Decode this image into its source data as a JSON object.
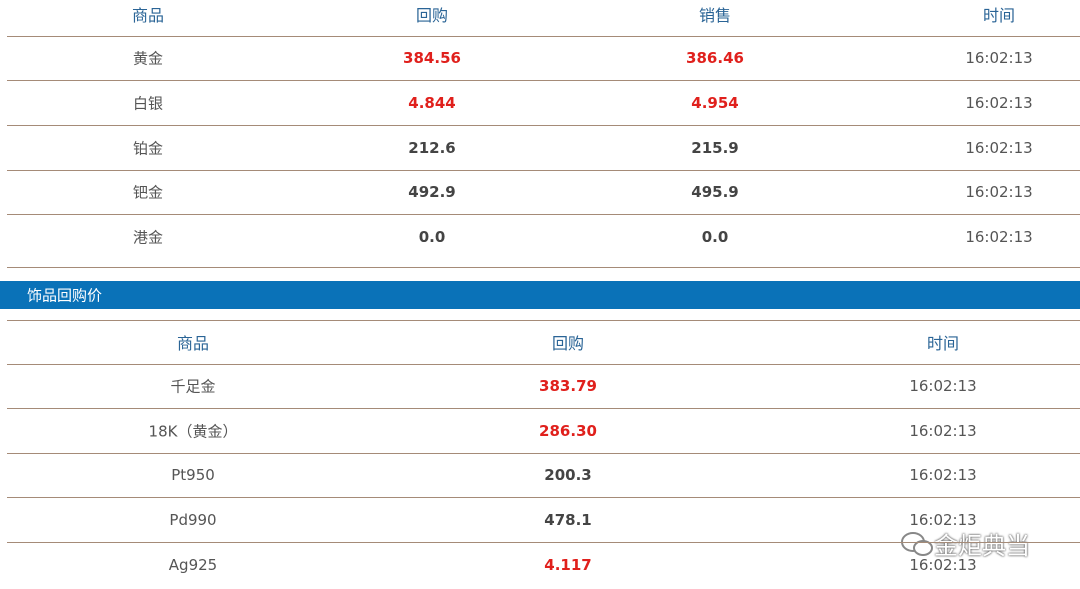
{
  "table1": {
    "header": [
      "商品",
      "回购",
      "销售",
      "时间"
    ],
    "rows": [
      [
        "黄金",
        "384.56",
        "386.46",
        "16:02:13"
      ],
      [
        "白银",
        "4.844",
        "4.954",
        "16:02:13"
      ],
      [
        "铂金",
        "212.6",
        "215.9",
        "16:02:13"
      ],
      [
        "钯金",
        "492.9",
        "495.9",
        "16:02:13"
      ],
      [
        "港金",
        "0.0",
        "0.0",
        "16:02:13"
      ]
    ],
    "value_colors": [
      "#e0201c",
      "#e0201c",
      "#444444",
      "#444444",
      "#444444"
    ]
  },
  "section": {
    "title": "饰品回购价",
    "color": "#0a72b8"
  },
  "table2": {
    "header": [
      "商品",
      "回购",
      "时间"
    ],
    "rows": [
      [
        "千足金",
        "383.79",
        "16:02:13"
      ],
      [
        "18K（黄金）",
        "286.30",
        "16:02:13"
      ],
      [
        "Pt950",
        "200.3",
        "16:02:13"
      ],
      [
        "Pd990",
        "478.1",
        "16:02:13"
      ],
      [
        "Ag925",
        "4.117",
        "16:02:13"
      ]
    ],
    "value_colors": [
      "#e0201c",
      "#e0201c",
      "#444444",
      "#444444",
      "#e0201c"
    ]
  },
  "watermark": "金炬典当"
}
